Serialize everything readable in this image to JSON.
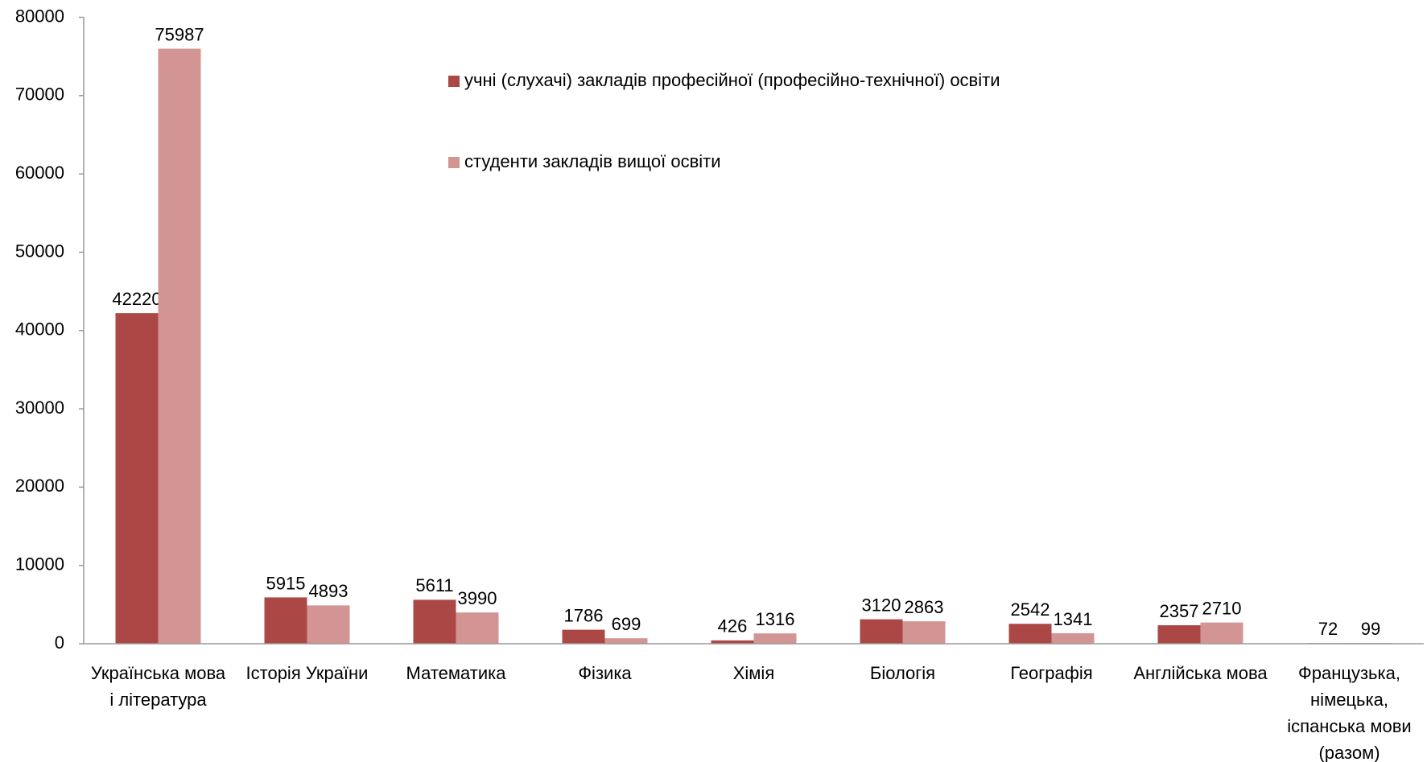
{
  "chart_data": {
    "type": "bar",
    "categories": [
      "Українська мова і література",
      "Історія України",
      "Математика",
      "Фізика",
      "Хімія",
      "Біологія",
      "Географія",
      "Англійська мова",
      "Французька, німецька, іспанська мови (разом)"
    ],
    "series": [
      {
        "name": "учні (слухачі) закладів професійної (професійно-технічної) освіти",
        "color": "#ab4846",
        "values": [
          42220,
          5915,
          5611,
          1786,
          426,
          3120,
          2542,
          2357,
          72
        ]
      },
      {
        "name": "студенти закладів вищої освіти",
        "color": "#d39593",
        "values": [
          75987,
          4893,
          3990,
          699,
          1316,
          2863,
          1341,
          2710,
          99
        ]
      }
    ],
    "ylim": [
      0,
      80000
    ],
    "yticks": [
      0,
      10000,
      20000,
      30000,
      40000,
      50000,
      60000,
      70000,
      80000
    ],
    "grid": false,
    "legend": "top"
  }
}
